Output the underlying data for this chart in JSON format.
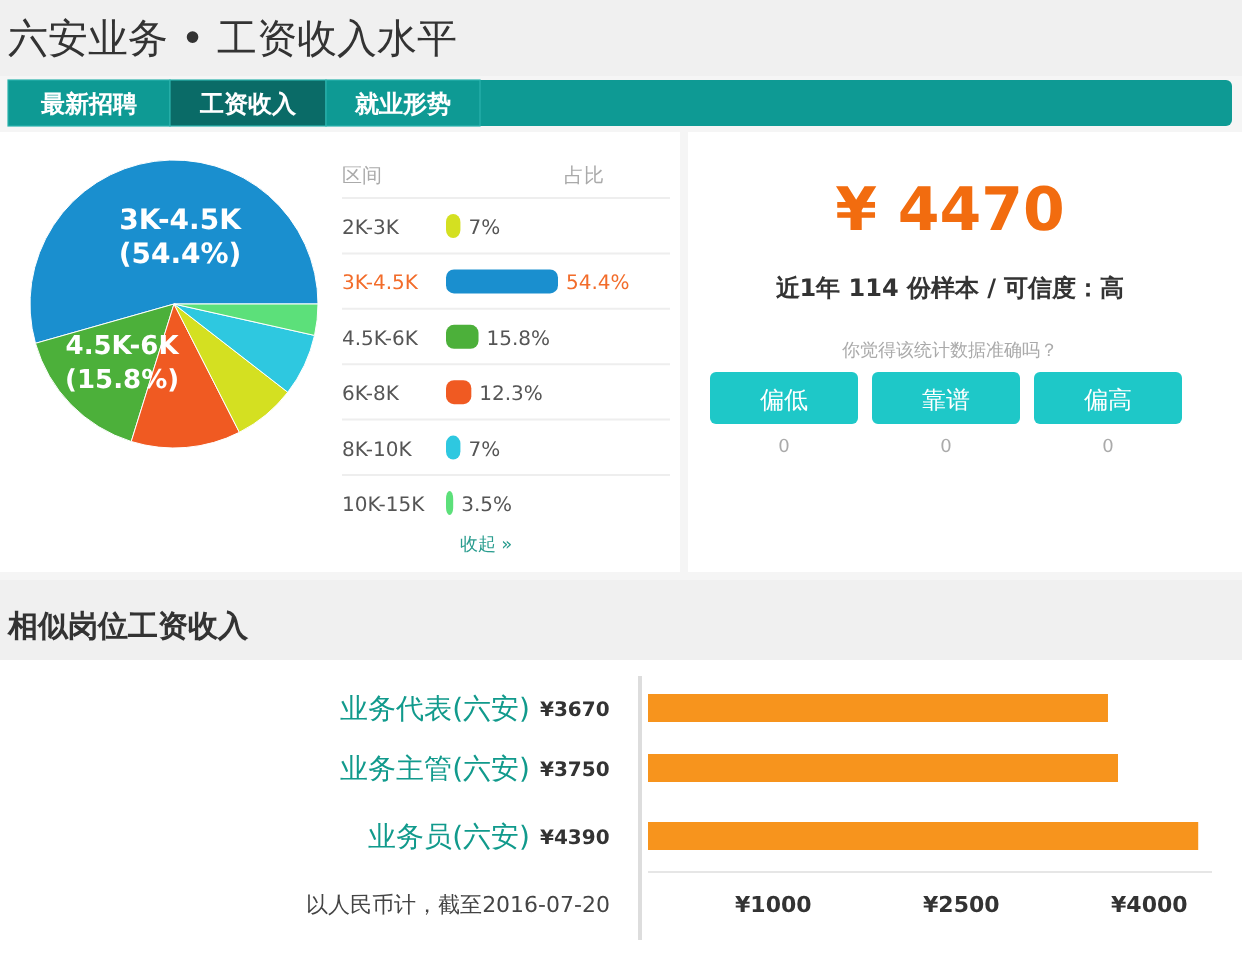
{
  "chart_data": [
    {
      "type": "pie",
      "title": "六安业务 • 工资收入水平",
      "annotations": [
        "最新招聘",
        "工资收入",
        "就业形势"
      ],
      "categories": [
        "3K-4.5K",
        "4.5K-6K",
        null,
        null,
        null,
        null
      ],
      "values": [
        54.4,
        15.8,
        12.3,
        7,
        7,
        3.5
      ],
      "value_labels": [
        "(54.4%)",
        "(15.8%)",
        null,
        null,
        null,
        null
      ],
      "colors": [
        "#1a8fcf",
        "#4cb03a",
        "#f05a22",
        "#d4e021",
        "#2ec8e0",
        "#5ce07a"
      ]
    },
    {
      "type": "bar",
      "orientation": "horizontal",
      "ylabel": "区间",
      "xlabel": "占比",
      "annotations": [
        "收起 »"
      ],
      "categories": [
        "2K-3K",
        "3K-4.5K",
        "4.5K-6K",
        "6K-8K",
        "8K-10K",
        "10K-15K"
      ],
      "values": [
        7,
        54.4,
        15.8,
        12.3,
        7,
        3.5
      ],
      "value_labels": [
        "7%",
        "54.4%",
        "15.8%",
        "12.3%",
        "7%",
        "3.5%"
      ],
      "colors": [
        "#d4e021",
        "#1a8fcf",
        "#4cb03a",
        "#f05a22",
        "#2ec8e0",
        "#5ce07a"
      ]
    },
    {
      "type": "other",
      "title": "¥ 4470",
      "subtitle": "近1年 114 份样本 / 可信度：高",
      "annotations": [
        "你觉得该统计数据准确吗？"
      ],
      "categories": [
        "偏低",
        "靠谱",
        "偏高"
      ],
      "values": [
        0,
        0,
        0
      ],
      "data_labels": true
    },
    {
      "type": "bar",
      "orientation": "horizontal",
      "title": "相似岗位工资收入",
      "annotations": [
        "以人民币计，截至2016-07-20"
      ],
      "categories": [
        "业务代表(六安)",
        "业务主管(六安)",
        "业务员(六安)"
      ],
      "values": [
        3670,
        3750,
        4390
      ],
      "value_labels": [
        "¥3670",
        "¥3750",
        "¥4390"
      ],
      "color": "#f7941d",
      "xlim": [
        0,
        4500
      ],
      "xticks": [
        {
          "value": 1000,
          "label": "¥1000"
        },
        {
          "value": 2500,
          "label": "¥2500"
        },
        {
          "value": 4000,
          "label": "¥4000"
        }
      ]
    }
  ]
}
